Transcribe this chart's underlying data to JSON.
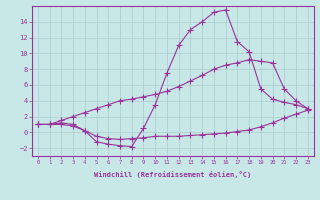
{
  "title": "",
  "xlabel": "Windchill (Refroidissement éolien,°C)",
  "background_color": "#c8e8e8",
  "grid_color": "#aacccc",
  "line_color": "#993399",
  "marker": "+",
  "markersize": 4,
  "linewidth": 0.8,
  "x": [
    0,
    1,
    2,
    3,
    4,
    5,
    6,
    7,
    8,
    9,
    10,
    11,
    12,
    13,
    14,
    15,
    16,
    17,
    18,
    19,
    20,
    21,
    22,
    23
  ],
  "curve1": [
    1.0,
    1.0,
    1.0,
    0.8,
    0.2,
    -0.5,
    -0.8,
    -0.9,
    -0.8,
    -0.7,
    -0.5,
    -0.5,
    -0.5,
    -0.4,
    -0.3,
    -0.2,
    -0.1,
    0.1,
    0.3,
    0.7,
    1.2,
    1.8,
    2.3,
    2.8
  ],
  "curve2": [
    1.0,
    1.0,
    1.2,
    1.0,
    0.2,
    -1.2,
    -1.5,
    -1.7,
    -1.8,
    0.5,
    3.5,
    7.5,
    11.0,
    13.0,
    14.0,
    15.2,
    15.5,
    11.5,
    10.2,
    5.5,
    4.2,
    3.8,
    3.5,
    3.0
  ],
  "curve3": [
    1.0,
    1.0,
    1.5,
    2.0,
    2.5,
    3.0,
    3.5,
    4.0,
    4.2,
    4.5,
    4.8,
    5.2,
    5.8,
    6.5,
    7.2,
    8.0,
    8.5,
    8.8,
    9.2,
    9.0,
    8.8,
    5.5,
    4.0,
    3.0
  ],
  "xlim": [
    -0.5,
    23.5
  ],
  "ylim": [
    -3,
    16
  ],
  "yticks": [
    -2,
    0,
    2,
    4,
    6,
    8,
    10,
    12,
    14
  ],
  "xticks": [
    0,
    1,
    2,
    3,
    4,
    5,
    6,
    7,
    8,
    9,
    10,
    11,
    12,
    13,
    14,
    15,
    16,
    17,
    18,
    19,
    20,
    21,
    22,
    23
  ]
}
